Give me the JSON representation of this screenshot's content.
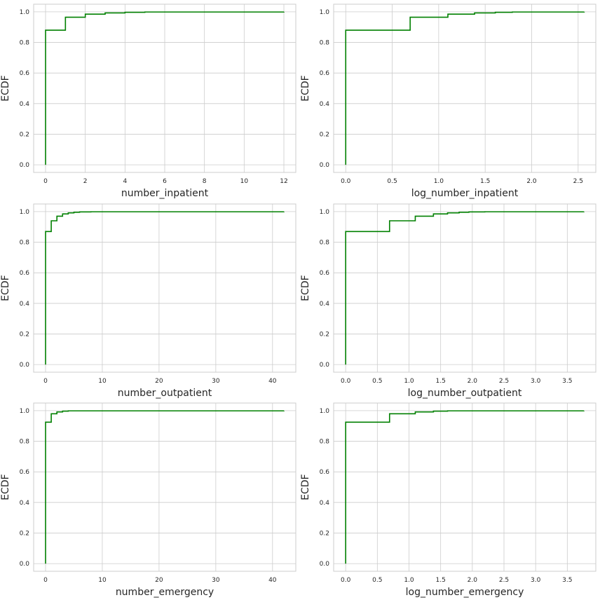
{
  "figure": {
    "line_color": "#008000",
    "grid_color": "#cccccc",
    "background": "#ffffff"
  },
  "chart_data": [
    {
      "type": "line",
      "subtype": "ecdf-step",
      "xlabel": "number_inpatient",
      "ylabel": "ECDF",
      "xlim": [
        -0.6,
        12.6
      ],
      "ylim": [
        -0.05,
        1.05
      ],
      "xticks": [
        0,
        2,
        4,
        6,
        8,
        10,
        12
      ],
      "xtick_labels": [
        "0",
        "2",
        "4",
        "6",
        "8",
        "10",
        "12"
      ],
      "yticks": [
        0.0,
        0.2,
        0.4,
        0.6,
        0.8,
        1.0
      ],
      "ytick_labels": [
        "0.0",
        "0.2",
        "0.4",
        "0.6",
        "0.8",
        "1.0"
      ],
      "grid": true,
      "series": [
        {
          "name": "ECDF",
          "x": [
            0,
            1,
            2,
            3,
            4,
            5,
            12
          ],
          "y": [
            0.88,
            0.965,
            0.985,
            0.993,
            0.997,
            0.999,
            1.0
          ]
        }
      ]
    },
    {
      "type": "line",
      "subtype": "ecdf-step",
      "xlabel": "log_number_inpatient",
      "ylabel": "ECDF",
      "xlim": [
        -0.13,
        2.69
      ],
      "ylim": [
        -0.05,
        1.05
      ],
      "xticks": [
        0.0,
        0.5,
        1.0,
        1.5,
        2.0,
        2.5
      ],
      "xtick_labels": [
        "0.0",
        "0.5",
        "1.0",
        "1.5",
        "2.0",
        "2.5"
      ],
      "yticks": [
        0.0,
        0.2,
        0.4,
        0.6,
        0.8,
        1.0
      ],
      "ytick_labels": [
        "0.0",
        "0.2",
        "0.4",
        "0.6",
        "0.8",
        "1.0"
      ],
      "grid": true,
      "series": [
        {
          "name": "ECDF",
          "x": [
            0,
            0.693,
            1.099,
            1.386,
            1.609,
            1.792,
            2.565
          ],
          "y": [
            0.88,
            0.965,
            0.985,
            0.993,
            0.997,
            0.999,
            1.0
          ]
        }
      ]
    },
    {
      "type": "line",
      "subtype": "ecdf-step",
      "xlabel": "number_outpatient",
      "ylabel": "ECDF",
      "xlim": [
        -2.1,
        44.1
      ],
      "ylim": [
        -0.05,
        1.05
      ],
      "xticks": [
        0,
        10,
        20,
        30,
        40
      ],
      "xtick_labels": [
        "0",
        "10",
        "20",
        "30",
        "40"
      ],
      "yticks": [
        0.0,
        0.2,
        0.4,
        0.6,
        0.8,
        1.0
      ],
      "ytick_labels": [
        "0.0",
        "0.2",
        "0.4",
        "0.6",
        "0.8",
        "1.0"
      ],
      "grid": true,
      "series": [
        {
          "name": "ECDF",
          "x": [
            0,
            1,
            2,
            3,
            4,
            5,
            6,
            8,
            42
          ],
          "y": [
            0.87,
            0.94,
            0.97,
            0.985,
            0.992,
            0.996,
            0.998,
            0.999,
            1.0
          ]
        }
      ]
    },
    {
      "type": "line",
      "subtype": "ecdf-step",
      "xlabel": "log_number_outpatient",
      "ylabel": "ECDF",
      "xlim": [
        -0.19,
        3.95
      ],
      "ylim": [
        -0.05,
        1.05
      ],
      "xticks": [
        0.0,
        0.5,
        1.0,
        1.5,
        2.0,
        2.5,
        3.0,
        3.5
      ],
      "xtick_labels": [
        "0.0",
        "0.5",
        "1.0",
        "1.5",
        "2.0",
        "2.5",
        "3.0",
        "3.5"
      ],
      "yticks": [
        0.0,
        0.2,
        0.4,
        0.6,
        0.8,
        1.0
      ],
      "ytick_labels": [
        "0.0",
        "0.2",
        "0.4",
        "0.6",
        "0.8",
        "1.0"
      ],
      "grid": true,
      "series": [
        {
          "name": "ECDF",
          "x": [
            0,
            0.693,
            1.099,
            1.386,
            1.609,
            1.792,
            1.946,
            2.197,
            3.761
          ],
          "y": [
            0.87,
            0.94,
            0.97,
            0.985,
            0.992,
            0.996,
            0.998,
            0.999,
            1.0
          ]
        }
      ]
    },
    {
      "type": "line",
      "subtype": "ecdf-step",
      "xlabel": "number_emergency",
      "ylabel": "ECDF",
      "xlim": [
        -2.1,
        44.1
      ],
      "ylim": [
        -0.05,
        1.05
      ],
      "xticks": [
        0,
        10,
        20,
        30,
        40
      ],
      "xtick_labels": [
        "0",
        "10",
        "20",
        "30",
        "40"
      ],
      "yticks": [
        0.0,
        0.2,
        0.4,
        0.6,
        0.8,
        1.0
      ],
      "ytick_labels": [
        "0.0",
        "0.2",
        "0.4",
        "0.6",
        "0.8",
        "1.0"
      ],
      "grid": true,
      "series": [
        {
          "name": "ECDF",
          "x": [
            0,
            1,
            2,
            3,
            4,
            42
          ],
          "y": [
            0.925,
            0.98,
            0.992,
            0.997,
            0.999,
            1.0
          ]
        }
      ]
    },
    {
      "type": "line",
      "subtype": "ecdf-step",
      "xlabel": "log_number_emergency",
      "ylabel": "ECDF",
      "xlim": [
        -0.19,
        3.95
      ],
      "ylim": [
        -0.05,
        1.05
      ],
      "xticks": [
        0.0,
        0.5,
        1.0,
        1.5,
        2.0,
        2.5,
        3.0,
        3.5
      ],
      "xtick_labels": [
        "0.0",
        "0.5",
        "1.0",
        "1.5",
        "2.0",
        "2.5",
        "3.0",
        "3.5"
      ],
      "yticks": [
        0.0,
        0.2,
        0.4,
        0.6,
        0.8,
        1.0
      ],
      "ytick_labels": [
        "0.0",
        "0.2",
        "0.4",
        "0.6",
        "0.8",
        "1.0"
      ],
      "grid": true,
      "series": [
        {
          "name": "ECDF",
          "x": [
            0,
            0.693,
            1.099,
            1.386,
            1.609,
            3.761
          ],
          "y": [
            0.925,
            0.98,
            0.992,
            0.997,
            0.999,
            1.0
          ]
        }
      ]
    }
  ]
}
